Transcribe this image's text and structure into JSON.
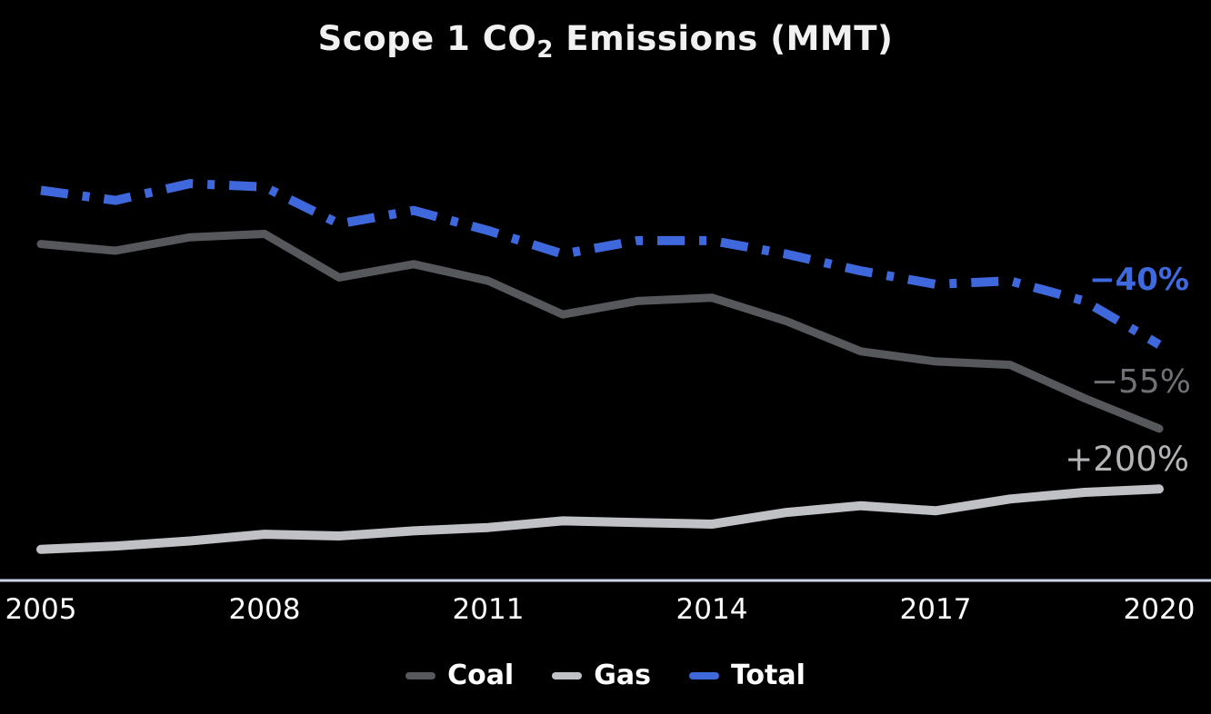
{
  "title": {
    "part1": "Scope 1 CO",
    "sub": "2",
    "part2": " Emissions (MMT)"
  },
  "chart_data": {
    "type": "line",
    "title": "Scope 1 CO2 Emissions (MMT)",
    "x": [
      2005,
      2006,
      2007,
      2008,
      2009,
      2010,
      2011,
      2012,
      2013,
      2014,
      2015,
      2016,
      2017,
      2018,
      2019,
      2020
    ],
    "x_tick_labels": [
      "2005",
      "2008",
      "2011",
      "2014",
      "2017",
      "2020"
    ],
    "x_tick_values": [
      2005,
      2008,
      2011,
      2014,
      2017,
      2020
    ],
    "xlabel": "",
    "ylabel": "",
    "ylim": [
      0,
      135
    ],
    "grid": false,
    "y_axis_shown": false,
    "legend_position": "bottom",
    "series": [
      {
        "name": "Coal",
        "color": "#57585C",
        "line_style": "solid",
        "values": [
          100,
          98,
          102,
          103,
          90,
          94,
          89,
          79,
          83,
          84,
          77,
          68,
          65,
          64,
          54,
          45
        ],
        "pct_change_label": "−55%"
      },
      {
        "name": "Gas",
        "color": "#C0C1C4",
        "line_style": "solid",
        "values": [
          9,
          10,
          11.5,
          13.5,
          13,
          14.5,
          15.5,
          17.5,
          17,
          16.5,
          20,
          22,
          20.5,
          24,
          26,
          27
        ],
        "pct_change_label": "+200%"
      },
      {
        "name": "Total",
        "color": "#3F68DC",
        "line_style": "dash-dot",
        "values": [
          116,
          113,
          118,
          117,
          106,
          110,
          104,
          97,
          101,
          101,
          97,
          92,
          88,
          89,
          83,
          70
        ],
        "pct_change_label": "−40%"
      }
    ]
  },
  "annotations": {
    "total": {
      "text": "−40%",
      "color": "#3F6ADF"
    },
    "coal": {
      "text": "−55%",
      "color": "#6F7174"
    },
    "gas": {
      "text": "+200%",
      "color": "#B3B4B6"
    }
  },
  "legend": {
    "items": [
      "Coal",
      "Gas",
      "Total"
    ]
  },
  "colors": {
    "background": "#000000",
    "axis_line": "#CDD4E6",
    "title": "#F1F1F1",
    "tick_label": "#FFFFFF",
    "legend_label": "#FFFFFF"
  }
}
